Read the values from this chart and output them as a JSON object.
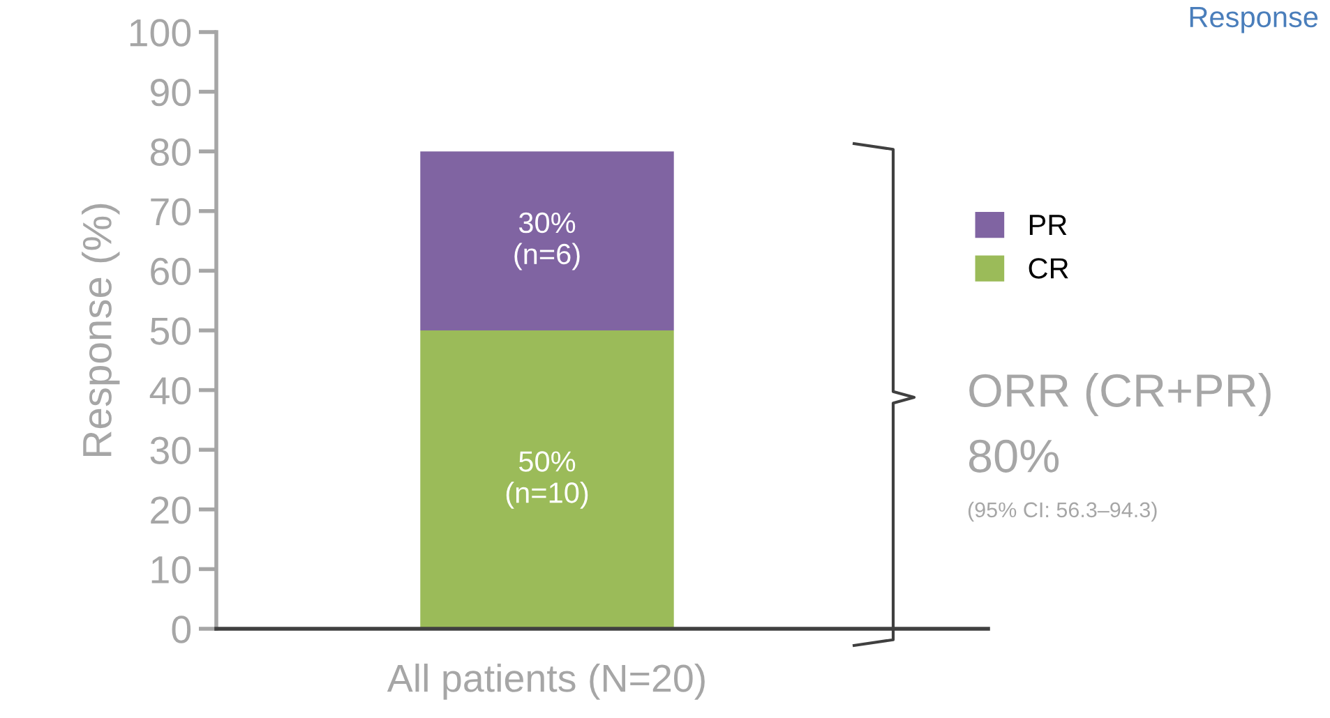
{
  "chart_data": {
    "type": "bar",
    "stacked": true,
    "ylabel": "Response (%)",
    "categories": [
      "All patients (N=20)"
    ],
    "series": [
      {
        "name": "CR",
        "color": "#9bbb59",
        "values": [
          50
        ],
        "value_labels": [
          "50%\n(n=10)"
        ]
      },
      {
        "name": "PR",
        "color": "#8064a2",
        "values": [
          30
        ],
        "value_labels": [
          "30%\n(n=6)"
        ]
      }
    ],
    "ylim": [
      0,
      100
    ],
    "yticks": [
      0,
      10,
      20,
      30,
      40,
      50,
      60,
      70,
      80,
      90,
      100
    ],
    "legend": "right",
    "grid": false,
    "annotations": [
      "ORR (CR+PR)",
      "80%",
      "(95% CI: 56.3–94.3)",
      "Response"
    ]
  }
}
